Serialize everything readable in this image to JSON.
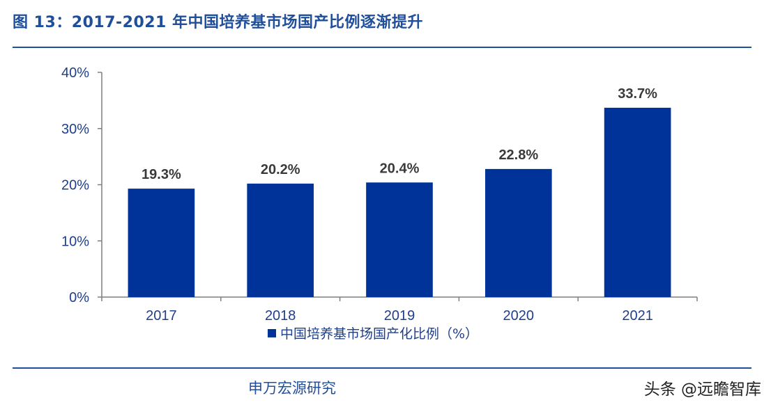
{
  "figure": {
    "title": "图 13：2017-2021 年中国培养基市场国产比例逐渐提升",
    "source": "申万宏源研究",
    "watermark": "头条 @远瞻智库"
  },
  "colors": {
    "bar": "#003399",
    "axis": "#1f4e9b",
    "text": "#1f3f8a"
  },
  "chart_data": {
    "type": "bar",
    "categories": [
      "2017",
      "2018",
      "2019",
      "2020",
      "2021"
    ],
    "series": [
      {
        "name": "中国培养基市场国产化比例（%）",
        "values": [
          19.3,
          20.2,
          20.4,
          22.8,
          33.7
        ]
      }
    ],
    "data_labels": [
      "19.3%",
      "20.2%",
      "20.4%",
      "22.8%",
      "33.7%"
    ],
    "ylim": [
      0,
      40
    ],
    "yticks": [
      0,
      10,
      20,
      30,
      40
    ],
    "ytick_labels": [
      "0%",
      "10%",
      "20%",
      "30%",
      "40%"
    ],
    "legend_position": "bottom",
    "grid": false
  }
}
